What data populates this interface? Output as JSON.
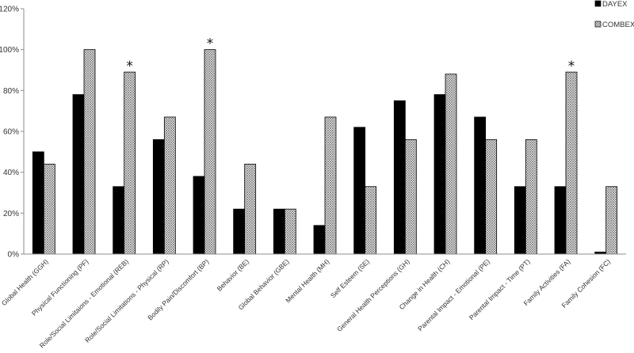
{
  "chart_data": {
    "type": "bar",
    "title": "",
    "xlabel": "",
    "ylabel": "",
    "ylim": [
      0,
      120
    ],
    "yticks": [
      0,
      20,
      40,
      60,
      80,
      100,
      120
    ],
    "ytick_suffix": "%",
    "grid": false,
    "legend_position": "top-right",
    "categories": [
      "Global Health (GGH)",
      "Physical Functioning (PF)",
      "Role/Social Limitaions - Emotional (REB)",
      "Role/Social Limitations - Physical (RP)",
      "Bodily Pain/Discomfort (BP)",
      "Behavior (BE)",
      "Global Behavior (GBE)",
      "Mental Health (MH)",
      "Self Esteem (SE)",
      "General Health Perceptions (GH)",
      "Change in Health (CH)",
      "Parental Impact - Emotional (PE)",
      "Parental Impact - Time (PT)",
      "Family Activities (FA)",
      "Family Cohesion (FC)"
    ],
    "series": [
      {
        "name": "DAYEX",
        "color": "#000000",
        "pattern": "solid",
        "values": [
          50,
          78,
          33,
          56,
          38,
          22,
          22,
          14,
          62,
          75,
          78,
          67,
          33,
          33,
          1
        ]
      },
      {
        "name": "COMBEX",
        "color": "#9a9a9a",
        "pattern": "crosshatch",
        "values": [
          44,
          100,
          89,
          67,
          100,
          44,
          22,
          67,
          33,
          56,
          88,
          56,
          56,
          89,
          33
        ]
      }
    ],
    "annotations": [
      {
        "text": "*",
        "category_index": 2,
        "series": "COMBEX"
      },
      {
        "text": "*",
        "category_index": 4,
        "series": "COMBEX"
      },
      {
        "text": "*",
        "category_index": 13,
        "series": "COMBEX"
      }
    ]
  }
}
